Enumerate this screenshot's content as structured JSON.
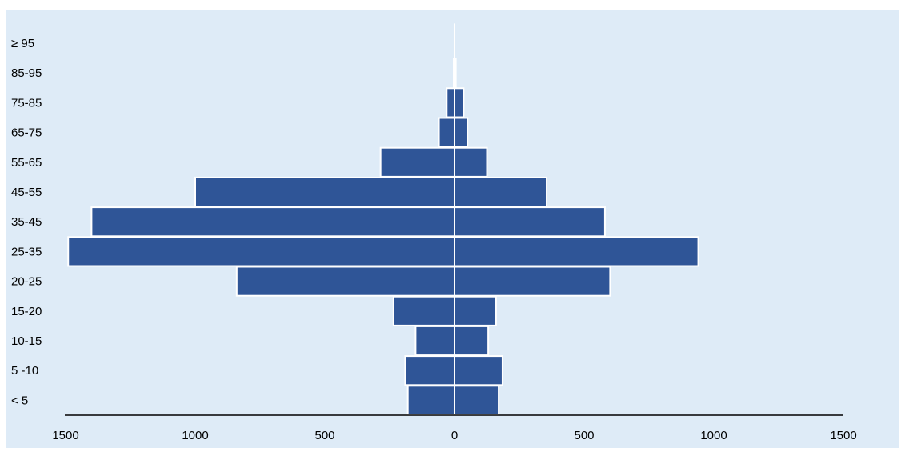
{
  "chart_data": {
    "type": "bar",
    "orientation": "horizontal-diverging",
    "categories": [
      "< 5",
      "5 -10",
      "10-15",
      "15-20",
      "20-25",
      "25-35",
      "35-45",
      "45-55",
      "55-65",
      "65-75",
      "75-85",
      "85-95",
      "≥ 95"
    ],
    "series": [
      {
        "values": [
          180,
          190,
          150,
          235,
          840,
          1490,
          1400,
          1000,
          285,
          60,
          30,
          3,
          0
        ]
      },
      {
        "values": [
          170,
          185,
          130,
          160,
          600,
          940,
          580,
          355,
          125,
          50,
          35,
          5,
          0
        ]
      }
    ],
    "xlim": [
      -1500,
      1500
    ],
    "x_ticks": [
      -1500,
      -1000,
      -500,
      0,
      500,
      1000,
      1500
    ],
    "x_tick_labels": [
      "1500",
      "1000",
      "500",
      "0",
      "500",
      "1000",
      "1500"
    ],
    "title": "",
    "xlabel": "",
    "ylabel": "",
    "grid": false,
    "legend": "none",
    "colors": {
      "bar": "#2f5597",
      "bar_edge": "#ffffff",
      "background": "#deebf7",
      "axis": "#000000",
      "center_line": "#ffffff"
    }
  }
}
